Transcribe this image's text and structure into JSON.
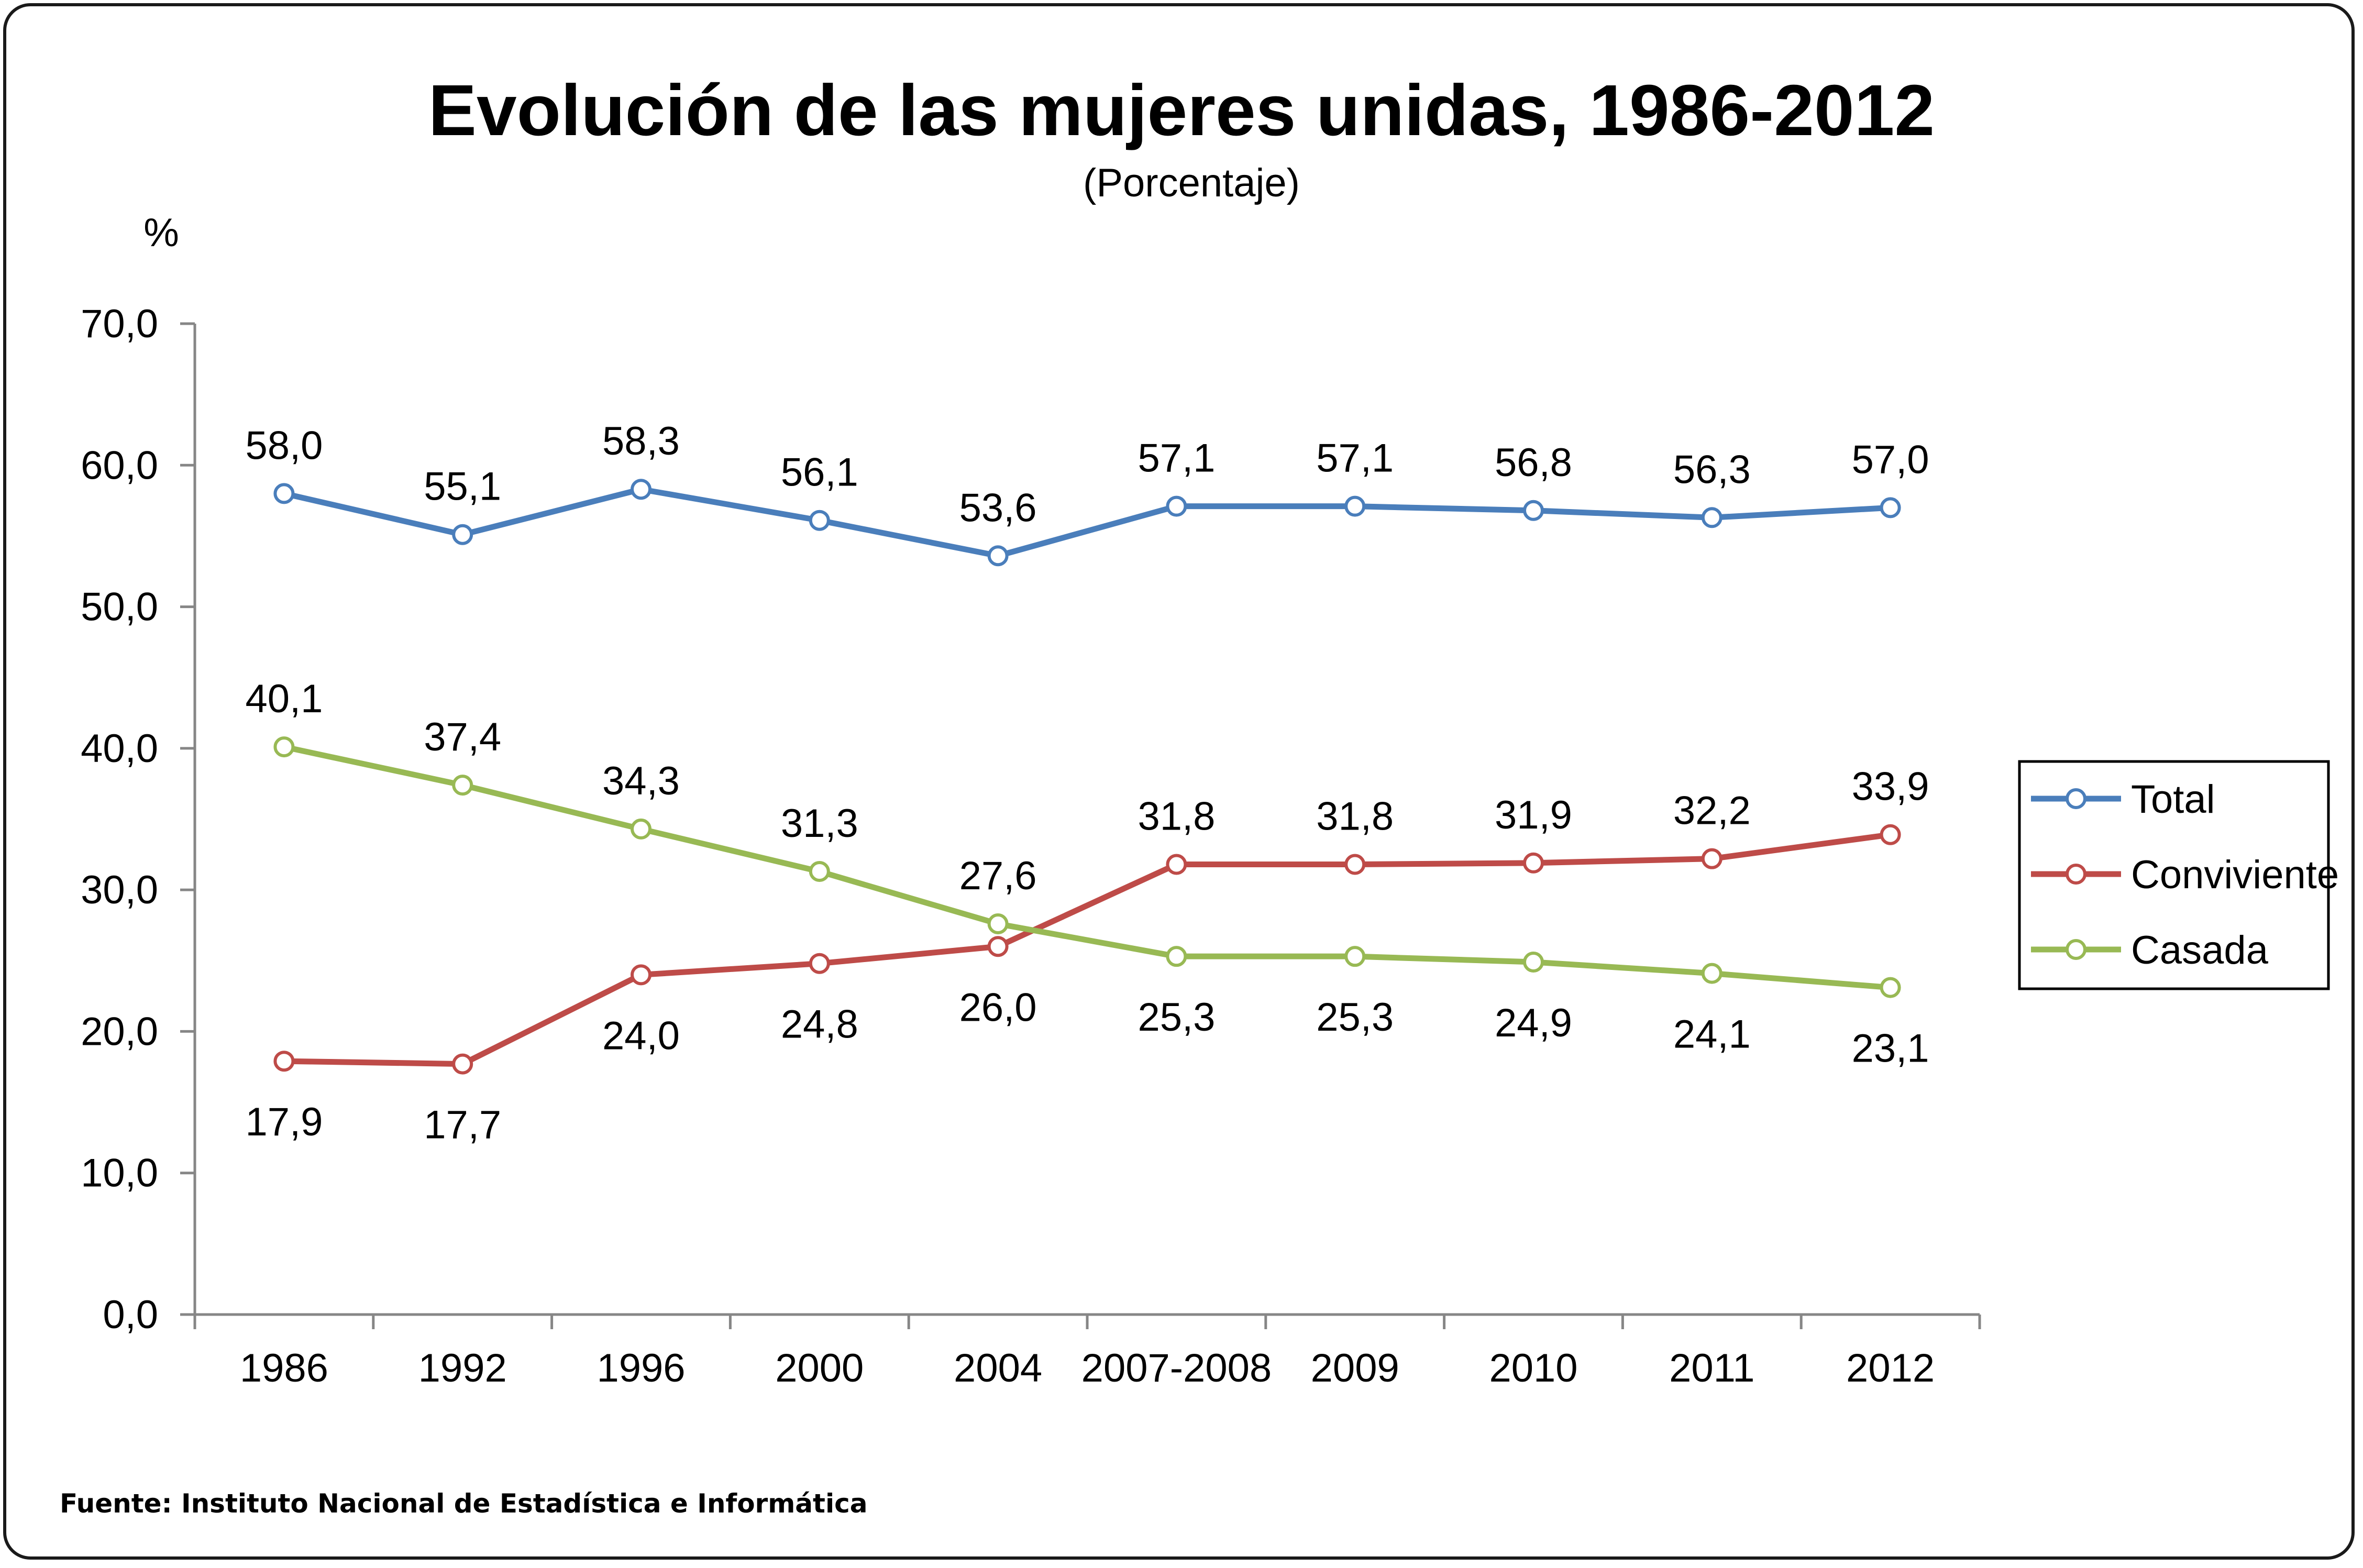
{
  "chart_data": {
    "type": "line",
    "title": "Evolución de las mujeres unidas, 1986-2012",
    "subtitle": "(Porcentaje)",
    "ylabel": "%",
    "xlabel": "",
    "categories": [
      "1986",
      "1992",
      "1996",
      "2000",
      "2004",
      "2007-2008",
      "2009",
      "2010",
      "2011",
      "2012"
    ],
    "ylim": [
      0,
      70
    ],
    "yticks": [
      0,
      10,
      20,
      30,
      40,
      50,
      60,
      70
    ],
    "ytick_labels": [
      "0,0",
      "10,0",
      "20,0",
      "30,0",
      "40,0",
      "50,0",
      "60,0",
      "70,0"
    ],
    "grid": false,
    "legend_position": "right",
    "series": [
      {
        "name": "Total",
        "color": "#4a7ebb",
        "values": [
          58.0,
          55.1,
          58.3,
          56.1,
          53.6,
          57.1,
          57.1,
          56.8,
          56.3,
          57.0
        ],
        "labels": [
          "58,0",
          "55,1",
          "58,3",
          "56,1",
          "53,6",
          "57,1",
          "57,1",
          "56,8",
          "56,3",
          "57,0"
        ],
        "label_side": [
          "above",
          "above",
          "above",
          "above",
          "above",
          "above",
          "above",
          "above",
          "above",
          "above"
        ]
      },
      {
        "name": "Conviviente",
        "color": "#be4b48",
        "values": [
          17.9,
          17.7,
          24.0,
          24.8,
          26.0,
          31.8,
          31.8,
          31.9,
          32.2,
          33.9
        ],
        "labels": [
          "17,9",
          "17,7",
          "24,0",
          "24,8",
          "26,0",
          "31,8",
          "31,8",
          "31,9",
          "32,2",
          "33,9"
        ],
        "label_side": [
          "below",
          "below",
          "below",
          "below",
          "below",
          "above",
          "above",
          "above",
          "above",
          "above"
        ]
      },
      {
        "name": "Casada",
        "color": "#98b954",
        "values": [
          40.1,
          37.4,
          34.3,
          31.3,
          27.6,
          25.3,
          25.3,
          24.9,
          24.1,
          23.1
        ],
        "labels": [
          "40,1",
          "37,4",
          "34,3",
          "31,3",
          "27,6",
          "25,3",
          "25,3",
          "24,9",
          "24,1",
          "23,1"
        ],
        "label_side": [
          "above",
          "above",
          "above",
          "above",
          "above",
          "below",
          "below",
          "below",
          "below",
          "below"
        ]
      }
    ],
    "source": "Fuente: Instituto Nacional de Estadística e Informática"
  }
}
